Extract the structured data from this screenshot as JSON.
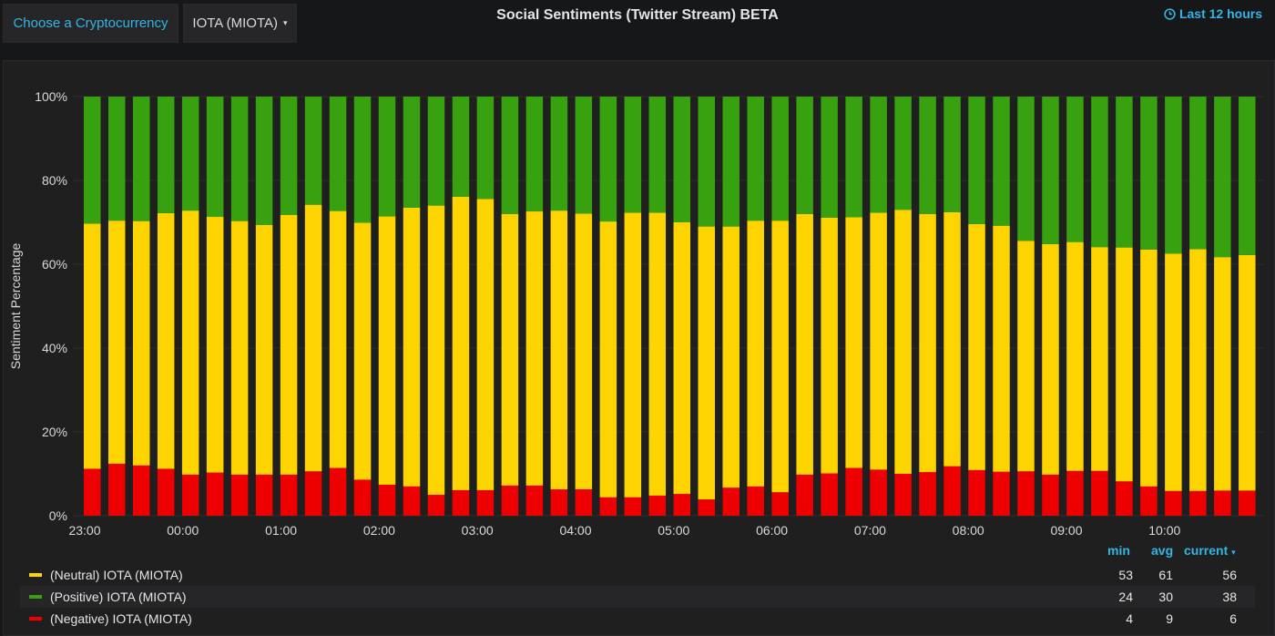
{
  "topbar": {
    "choose_label": "Choose a Cryptocurrency",
    "selected_currency": "IOTA (MIOTA)",
    "caret": "▾"
  },
  "panel": {
    "title": "Social Sentiments (Twitter Stream) BETA",
    "time_range": "Last 12 hours"
  },
  "colors": {
    "neutral": "#fdd400",
    "positive": "#37a10f",
    "negative": "#ef0000",
    "accent": "#33b5e5"
  },
  "legend": {
    "headers": {
      "min": "min",
      "avg": "avg",
      "current": "current"
    },
    "rows": [
      {
        "label": "(Neutral) IOTA (MIOTA)",
        "min": "53",
        "avg": "61",
        "current": "56",
        "color": "#fdd400"
      },
      {
        "label": "(Positive) IOTA (MIOTA)",
        "min": "24",
        "avg": "30",
        "current": "38",
        "color": "#37a10f"
      },
      {
        "label": "(Negative) IOTA (MIOTA)",
        "min": "4",
        "avg": "9",
        "current": "6",
        "color": "#ef0000"
      }
    ]
  },
  "chart_data": {
    "type": "bar",
    "stacked": true,
    "title": "Social Sentiments (Twitter Stream) BETA",
    "xlabel": "",
    "ylabel": "Sentiment Percentage",
    "ylim": [
      0,
      100
    ],
    "yticks": [
      "0%",
      "20%",
      "40%",
      "60%",
      "80%",
      "100%"
    ],
    "xticks": [
      "23:00",
      "00:00",
      "01:00",
      "02:00",
      "03:00",
      "04:00",
      "05:00",
      "06:00",
      "07:00",
      "08:00",
      "09:00",
      "10:00"
    ],
    "series": [
      {
        "name": "(Negative) IOTA (MIOTA)",
        "color": "#ef0000",
        "values": [
          11.2,
          12.4,
          12,
          11.2,
          9.8,
          10.3,
          9.8,
          9.8,
          9.8,
          10.6,
          11.4,
          8.6,
          7.4,
          7,
          5,
          6.1,
          6.1,
          7.2,
          7.2,
          6.3,
          6.3,
          4.4,
          4.4,
          4.8,
          5.2,
          3.9,
          6.7,
          7,
          5.6,
          9.8,
          10.1,
          11.4,
          11,
          10,
          10.4,
          11.8,
          10.9,
          10.5,
          10.6,
          9.8,
          10.7,
          10.7,
          8.2,
          7.0,
          5.9,
          5.9,
          6.0,
          6.0
        ]
      },
      {
        "name": "(Neutral) IOTA (MIOTA)",
        "color": "#fdd400",
        "values": [
          58.5,
          58,
          58.3,
          61,
          63,
          61,
          60.5,
          59.6,
          62,
          63.6,
          61.3,
          61.3,
          64,
          66.5,
          69,
          70,
          69.5,
          64.8,
          65.4,
          66.5,
          65.8,
          65.8,
          67.9,
          67.5,
          64.8,
          65.1,
          62.3,
          63.4,
          64.8,
          62.2,
          61,
          59.8,
          61.3,
          63,
          61.6,
          60.6,
          58.7,
          58.7,
          55,
          55,
          54.6,
          53.4,
          55.8,
          56.5,
          56.6,
          57.7,
          55.7,
          56.2
        ]
      },
      {
        "name": "(Positive) IOTA (MIOTA)",
        "color": "#37a10f",
        "values": [
          30.3,
          29.6,
          29.7,
          27.8,
          27.2,
          28.7,
          29.7,
          30.6,
          28.2,
          25.8,
          27.3,
          30.1,
          28.6,
          26.5,
          26,
          23.9,
          24.4,
          28,
          27.4,
          27.2,
          27.9,
          29.8,
          27.7,
          27.7,
          30,
          31,
          31,
          29.6,
          29.6,
          28,
          28.9,
          28.8,
          27.7,
          27,
          28,
          27.6,
          30.4,
          30.8,
          34.4,
          35.2,
          34.7,
          35.9,
          36,
          36.5,
          37.5,
          36.4,
          38.3,
          37.8
        ]
      }
    ]
  }
}
